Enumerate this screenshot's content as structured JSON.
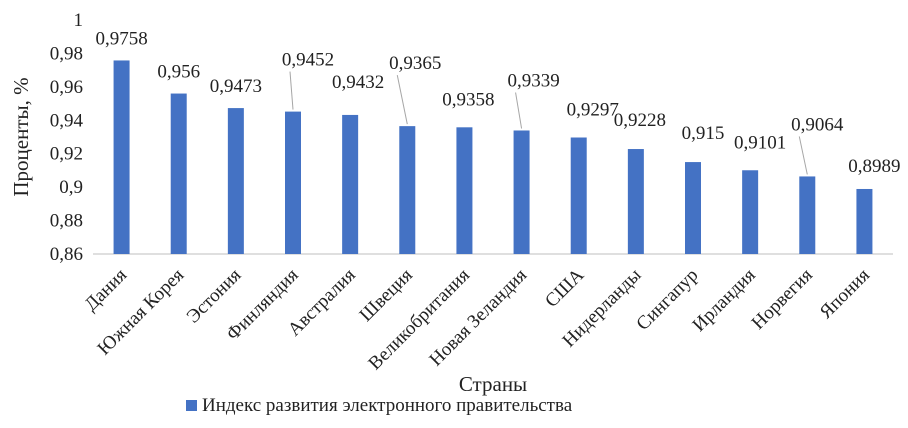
{
  "chart_data": {
    "type": "bar",
    "categories": [
      "Дания",
      "Южная Корея",
      "Эстония",
      "Финляндия",
      "Австралия",
      "Швеция",
      "Великобритания",
      "Новая Зеландия",
      "США",
      "Нидерланды",
      "Сингапур",
      "Ирландия",
      "Норвегия",
      "Япония"
    ],
    "series": [
      {
        "name": "Индекс развития электронного правительства",
        "values": [
          0.9758,
          0.956,
          0.9473,
          0.9452,
          0.9432,
          0.9365,
          0.9358,
          0.9339,
          0.9297,
          0.9228,
          0.915,
          0.9101,
          0.9064,
          0.8989
        ],
        "value_labels": [
          "0,9758",
          "0,956",
          "0,9473",
          "0,9452",
          "0,9432",
          "0,9365",
          "0,9358",
          "0,9339",
          "0,9297",
          "0,9228",
          "0,915",
          "0,9101",
          "0,9064",
          "0,8989"
        ],
        "color": "#4472C4"
      }
    ],
    "xlabel": "Страны",
    "ylabel": "Проценты, %",
    "ylim": [
      0.86,
      1
    ],
    "yticks": [
      "0,86",
      "0,88",
      "0,9",
      "0,92",
      "0,94",
      "0,96",
      "0,98",
      "1"
    ],
    "grid": false,
    "legend_position": "bottom"
  }
}
